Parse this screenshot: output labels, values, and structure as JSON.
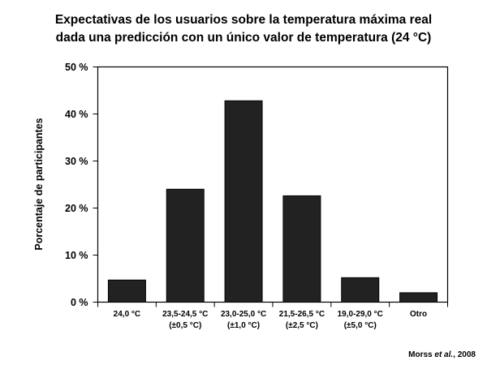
{
  "chart_data": {
    "type": "bar",
    "title": [
      "Expectativas de los usuarios sobre la temperatura máxima real",
      "dada una predicción con un único valor de temperatura (24 °C)"
    ],
    "ylabel": "Porcentaje de participantes",
    "xlabel": "",
    "ylim": [
      0,
      50
    ],
    "yticks": [
      {
        "value": 0,
        "label": "0 %"
      },
      {
        "value": 10,
        "label": "10 %"
      },
      {
        "value": 20,
        "label": "20 %"
      },
      {
        "value": 30,
        "label": "30 %"
      },
      {
        "value": 40,
        "label": "40 %"
      },
      {
        "value": 50,
        "label": "50 %"
      }
    ],
    "categories": [
      [
        "24,0 °C"
      ],
      [
        "23,5-24,5 °C",
        "(±0,5 °C)"
      ],
      [
        "23,0-25,0 °C",
        "(±1,0 °C)"
      ],
      [
        "21,5-26,5 °C",
        "(±2,5 °C)"
      ],
      [
        "19,0-29,0 °C",
        "(±5,0 °C)"
      ],
      [
        "Otro"
      ]
    ],
    "values": [
      4.7,
      24.0,
      42.8,
      22.6,
      5.2,
      2.0
    ],
    "bar_color": "#222222",
    "grid": false,
    "legend": "none"
  },
  "source": {
    "prefix": "Morss ",
    "em": "et al.",
    "suffix": ", 2008"
  }
}
